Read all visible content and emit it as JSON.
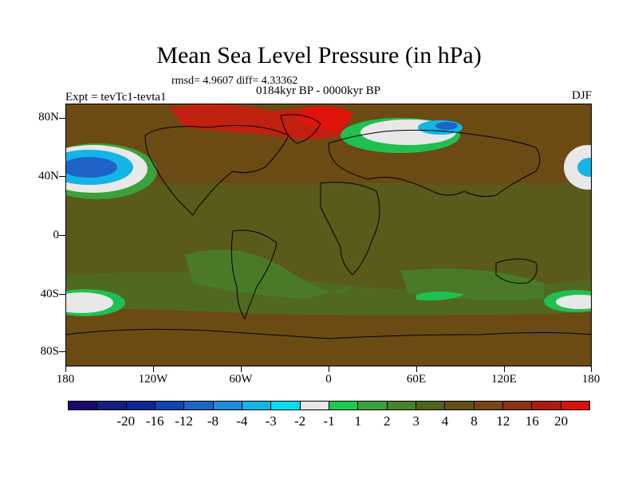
{
  "title": "Mean Sea Level Pressure (in hPa)",
  "stats": "rmsd= 4.9607 diff= 4.33362",
  "period": "0184kyr BP - 0000kyr BP",
  "experiment": "Expt = tevTc1-tevta1",
  "season": "DJF",
  "y_axis": {
    "labels": [
      "80N",
      "40N",
      "0",
      "40S",
      "80S"
    ]
  },
  "x_axis": {
    "labels": [
      "180",
      "120W",
      "60W",
      "0",
      "60E",
      "120E",
      "180"
    ]
  },
  "colorbar": {
    "colors": [
      "#1a0a6e",
      "#141e82",
      "#0a2896",
      "#0a46b4",
      "#1e64c8",
      "#1e8cdc",
      "#14b4e6",
      "#0adcf0",
      "#e6e6e6",
      "#1ec850",
      "#3ca03c",
      "#468228",
      "#506419",
      "#645014",
      "#784614",
      "#8c3214",
      "#aa1e0f",
      "#d2140a"
    ],
    "labels": [
      "-20",
      "-16",
      "-12",
      "-8",
      "-4",
      "-3",
      "-2",
      "-1",
      "1",
      "2",
      "3",
      "4",
      "8",
      "12",
      "16",
      "20"
    ]
  },
  "colors": {
    "background_anomaly": "#6a4c14",
    "positive_high": "#c02010",
    "land_outline": "#000000"
  }
}
